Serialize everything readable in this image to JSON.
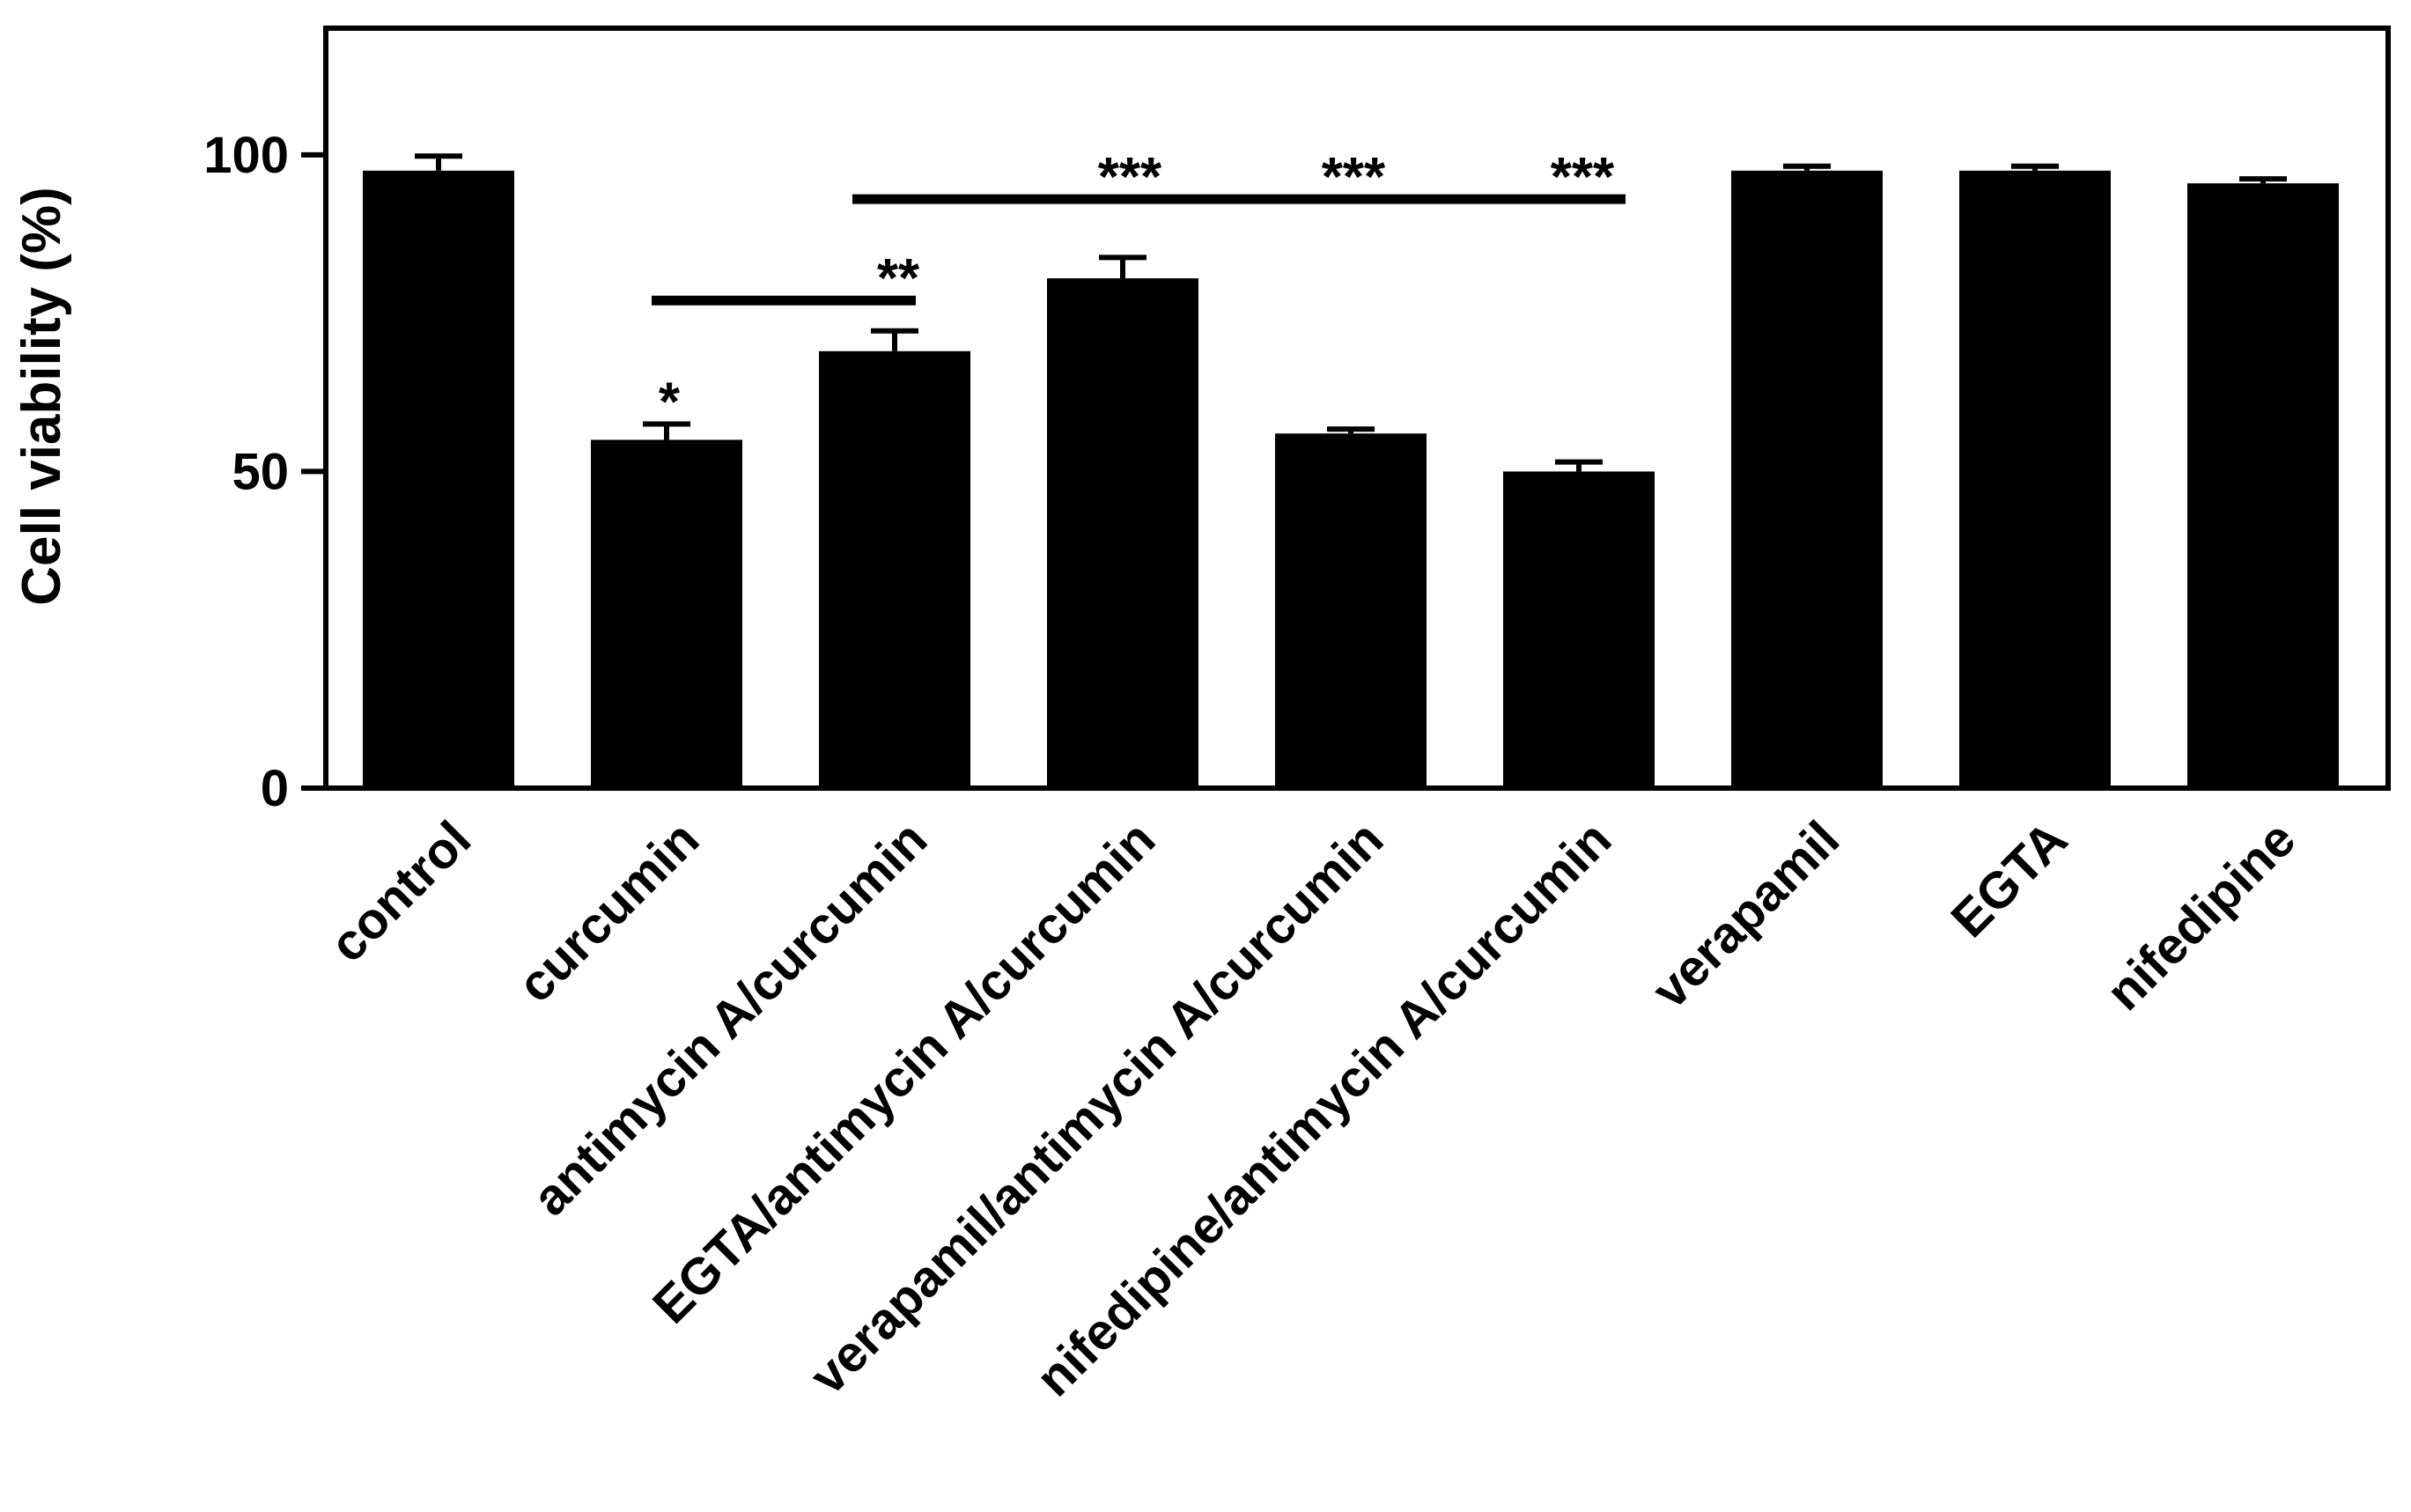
{
  "chart_data": {
    "type": "bar",
    "title": "",
    "xlabel": "",
    "ylabel": "Cell viability (%)",
    "ylim": [
      0,
      120
    ],
    "yticks": [
      0,
      50,
      100
    ],
    "grid": false,
    "legend": "none",
    "bar_color": "#000000",
    "categories": [
      "control",
      "curcumin",
      "antimycin A/curcumin",
      "EGTA/antimycin A/curcumin",
      "verapamil/antimycin A/curcumin",
      "nifedipine/antimycin A/curcumin",
      "verapamil",
      "EGTA",
      "nifedipine"
    ],
    "series": [
      {
        "values": [
          97.5,
          55,
          69,
          80.5,
          56,
          50,
          97.5,
          97.5,
          95.5
        ],
        "error": [
          2.3,
          2.5,
          3.2,
          3.3,
          0.7,
          1.5,
          0.7,
          0.7,
          0.7
        ]
      }
    ],
    "annotations": [
      {
        "text": "*",
        "category_index": 1,
        "y": 57.5
      },
      {
        "text": "**",
        "category_index": 2,
        "y": 77
      },
      {
        "text": "***",
        "category_index": 3,
        "y": 93
      },
      {
        "text": "***",
        "category_index": 4,
        "y": 93
      },
      {
        "text": "***",
        "category_index": 5,
        "y": 93
      }
    ],
    "brackets": [
      {
        "from_index": 1,
        "to_index": 2,
        "y": 77
      },
      {
        "from_index": 2,
        "to_index": 5,
        "y": 93
      }
    ]
  }
}
